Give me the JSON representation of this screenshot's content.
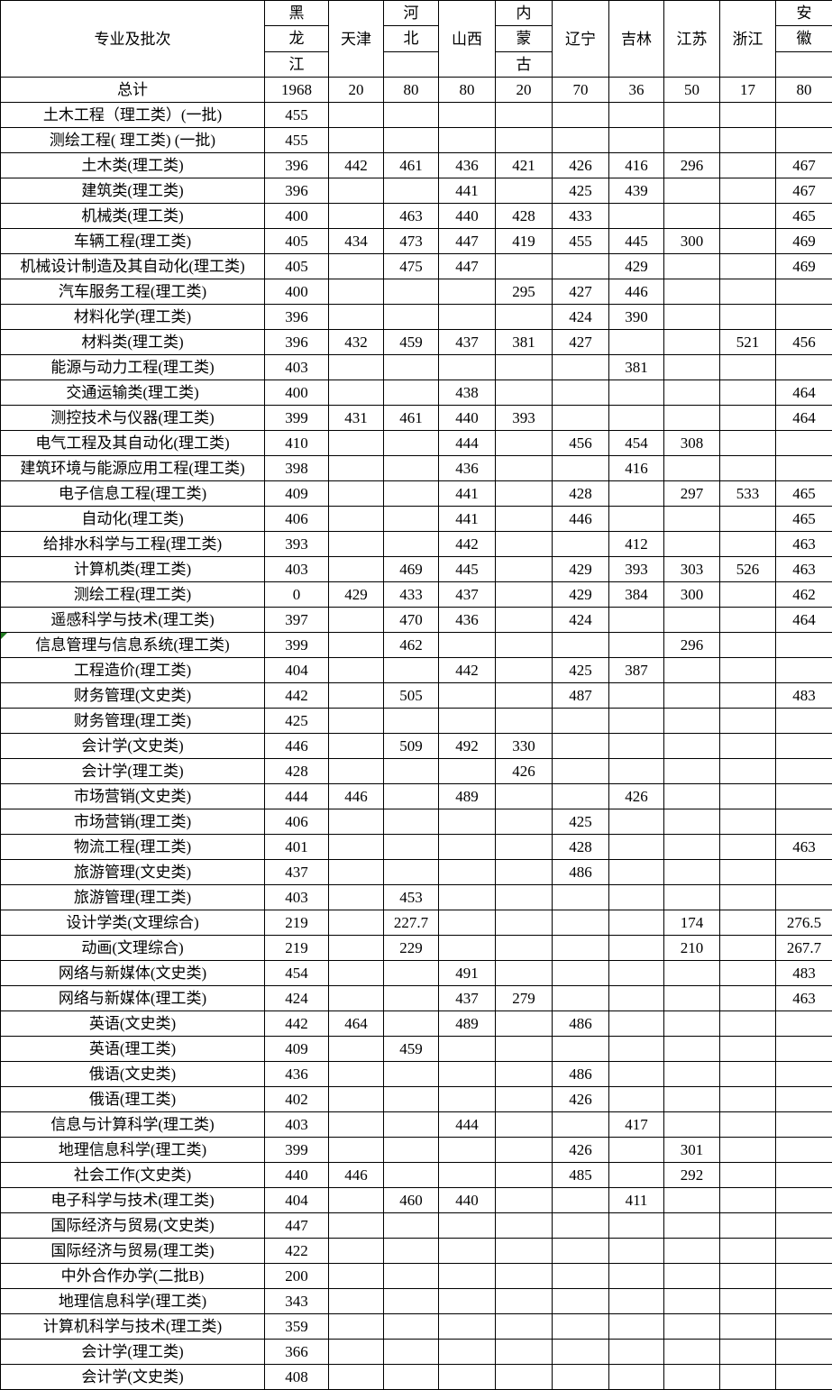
{
  "colors": {
    "background": "#ffffff",
    "border": "#000000",
    "text": "#000000",
    "marker_green": "#1f7a1f"
  },
  "table": {
    "label_header": "专业及批次",
    "provinces": [
      {
        "name": "黑龙江",
        "stack": [
          "黑",
          "龙",
          "江"
        ]
      },
      {
        "name": "天津",
        "stack": null
      },
      {
        "name": "河北",
        "stack": [
          "河",
          "北",
          ""
        ]
      },
      {
        "name": "山西",
        "stack": null
      },
      {
        "name": "内蒙古",
        "stack": [
          "内",
          "蒙",
          "古"
        ]
      },
      {
        "name": "辽宁",
        "stack": null
      },
      {
        "name": "吉林",
        "stack": null
      },
      {
        "name": "江苏",
        "stack": null
      },
      {
        "name": "浙江",
        "stack": null
      },
      {
        "name": "安徽",
        "stack": [
          "安",
          "徽",
          ""
        ]
      }
    ],
    "rows": [
      {
        "label": "总计",
        "values": [
          "1968",
          "20",
          "80",
          "80",
          "20",
          "70",
          "36",
          "50",
          "17",
          "80"
        ]
      },
      {
        "label": "土木工程（理工类）(一批)",
        "values": [
          "455",
          "",
          "",
          "",
          "",
          "",
          "",
          "",
          "",
          ""
        ]
      },
      {
        "label": "测绘工程( 理工类) (一批)",
        "values": [
          "455",
          "",
          "",
          "",
          "",
          "",
          "",
          "",
          "",
          ""
        ]
      },
      {
        "label": "土木类(理工类)",
        "values": [
          "396",
          "442",
          "461",
          "436",
          "421",
          "426",
          "416",
          "296",
          "",
          "467"
        ]
      },
      {
        "label": "建筑类(理工类)",
        "values": [
          "396",
          "",
          "",
          "441",
          "",
          "425",
          "439",
          "",
          "",
          "467"
        ]
      },
      {
        "label": "机械类(理工类)",
        "values": [
          "400",
          "",
          "463",
          "440",
          "428",
          "433",
          "",
          "",
          "",
          "465"
        ]
      },
      {
        "label": "车辆工程(理工类)",
        "values": [
          "405",
          "434",
          "473",
          "447",
          "419",
          "455",
          "445",
          "300",
          "",
          "469"
        ]
      },
      {
        "label": "机械设计制造及其自动化(理工类)",
        "values": [
          "405",
          "",
          "475",
          "447",
          "",
          "",
          "429",
          "",
          "",
          "469"
        ]
      },
      {
        "label": "汽车服务工程(理工类)",
        "values": [
          "400",
          "",
          "",
          "",
          "295",
          "427",
          "446",
          "",
          "",
          ""
        ]
      },
      {
        "label": "材料化学(理工类)",
        "values": [
          "396",
          "",
          "",
          "",
          "",
          "424",
          "390",
          "",
          "",
          ""
        ]
      },
      {
        "label": "材料类(理工类)",
        "values": [
          "396",
          "432",
          "459",
          "437",
          "381",
          "427",
          "",
          "",
          "521",
          "456"
        ]
      },
      {
        "label": "能源与动力工程(理工类)",
        "values": [
          "403",
          "",
          "",
          "",
          "",
          "",
          "381",
          "",
          "",
          ""
        ]
      },
      {
        "label": "交通运输类(理工类)",
        "values": [
          "400",
          "",
          "",
          "438",
          "",
          "",
          "",
          "",
          "",
          "464"
        ]
      },
      {
        "label": "测控技术与仪器(理工类)",
        "values": [
          "399",
          "431",
          "461",
          "440",
          "393",
          "",
          "",
          "",
          "",
          "464"
        ]
      },
      {
        "label": "电气工程及其自动化(理工类)",
        "values": [
          "410",
          "",
          "",
          "444",
          "",
          "456",
          "454",
          "308",
          "",
          ""
        ]
      },
      {
        "label": "建筑环境与能源应用工程(理工类)",
        "values": [
          "398",
          "",
          "",
          "436",
          "",
          "",
          "416",
          "",
          "",
          ""
        ]
      },
      {
        "label": "电子信息工程(理工类)",
        "values": [
          "409",
          "",
          "",
          "441",
          "",
          "428",
          "",
          "297",
          "533",
          "465"
        ]
      },
      {
        "label": "自动化(理工类)",
        "values": [
          "406",
          "",
          "",
          "441",
          "",
          "446",
          "",
          "",
          "",
          "465"
        ]
      },
      {
        "label": "给排水科学与工程(理工类)",
        "values": [
          "393",
          "",
          "",
          "442",
          "",
          "",
          "412",
          "",
          "",
          "463"
        ]
      },
      {
        "label": "计算机类(理工类)",
        "values": [
          "403",
          "",
          "469",
          "445",
          "",
          "429",
          "393",
          "303",
          "526",
          "463"
        ]
      },
      {
        "label": "测绘工程(理工类)",
        "values": [
          "0",
          "429",
          "433",
          "437",
          "",
          "429",
          "384",
          "300",
          "",
          "462"
        ]
      },
      {
        "label": "遥感科学与技术(理工类)",
        "values": [
          "397",
          "",
          "470",
          "436",
          "",
          "424",
          "",
          "",
          "",
          "464"
        ]
      },
      {
        "label": "信息管理与信息系统(理工类)",
        "marker": "green-triangle",
        "values": [
          "399",
          "",
          "462",
          "",
          "",
          "",
          "",
          "296",
          "",
          ""
        ]
      },
      {
        "label": "工程造价(理工类)",
        "values": [
          "404",
          "",
          "",
          "442",
          "",
          "425",
          "387",
          "",
          "",
          ""
        ]
      },
      {
        "label": "财务管理(文史类)",
        "values": [
          "442",
          "",
          "505",
          "",
          "",
          "487",
          "",
          "",
          "",
          "483"
        ]
      },
      {
        "label": "财务管理(理工类)",
        "values": [
          "425",
          "",
          "",
          "",
          "",
          "",
          "",
          "",
          "",
          ""
        ]
      },
      {
        "label": "会计学(文史类)",
        "values": [
          "446",
          "",
          "509",
          "492",
          "330",
          "",
          "",
          "",
          "",
          ""
        ]
      },
      {
        "label": "会计学(理工类)",
        "values": [
          "428",
          "",
          "",
          "",
          "426",
          "",
          "",
          "",
          "",
          ""
        ]
      },
      {
        "label": "市场营销(文史类)",
        "values": [
          "444",
          "446",
          "",
          "489",
          "",
          "",
          "426",
          "",
          "",
          ""
        ]
      },
      {
        "label": "市场营销(理工类)",
        "values": [
          "406",
          "",
          "",
          "",
          "",
          "425",
          "",
          "",
          "",
          ""
        ]
      },
      {
        "label": "物流工程(理工类)",
        "values": [
          "401",
          "",
          "",
          "",
          "",
          "428",
          "",
          "",
          "",
          "463"
        ]
      },
      {
        "label": "旅游管理(文史类)",
        "values": [
          "437",
          "",
          "",
          "",
          "",
          "486",
          "",
          "",
          "",
          ""
        ]
      },
      {
        "label": "旅游管理(理工类)",
        "values": [
          "403",
          "",
          "453",
          "",
          "",
          "",
          "",
          "",
          "",
          ""
        ]
      },
      {
        "label": "设计学类(文理综合)",
        "values": [
          "219",
          "",
          "227.7",
          "",
          "",
          "",
          "",
          "174",
          "",
          "276.5"
        ]
      },
      {
        "label": "动画(文理综合)",
        "values": [
          "219",
          "",
          "229",
          "",
          "",
          "",
          "",
          "210",
          "",
          "267.7"
        ]
      },
      {
        "label": "网络与新媒体(文史类)",
        "values": [
          "454",
          "",
          "",
          "491",
          "",
          "",
          "",
          "",
          "",
          "483"
        ]
      },
      {
        "label": "网络与新媒体(理工类)",
        "values": [
          "424",
          "",
          "",
          "437",
          "279",
          "",
          "",
          "",
          "",
          "463"
        ]
      },
      {
        "label": "英语(文史类)",
        "values": [
          "442",
          "464",
          "",
          "489",
          "",
          "486",
          "",
          "",
          "",
          ""
        ]
      },
      {
        "label": "英语(理工类)",
        "values": [
          "409",
          "",
          "459",
          "",
          "",
          "",
          "",
          "",
          "",
          ""
        ]
      },
      {
        "label": "俄语(文史类)",
        "values": [
          "436",
          "",
          "",
          "",
          "",
          "486",
          "",
          "",
          "",
          ""
        ]
      },
      {
        "label": "俄语(理工类)",
        "values": [
          "402",
          "",
          "",
          "",
          "",
          "426",
          "",
          "",
          "",
          ""
        ]
      },
      {
        "label": "信息与计算科学(理工类)",
        "values": [
          "403",
          "",
          "",
          "444",
          "",
          "",
          "417",
          "",
          "",
          ""
        ]
      },
      {
        "label": "地理信息科学(理工类)",
        "values": [
          "399",
          "",
          "",
          "",
          "",
          "426",
          "",
          "301",
          "",
          ""
        ]
      },
      {
        "label": "社会工作(文史类)",
        "values": [
          "440",
          "446",
          "",
          "",
          "",
          "485",
          "",
          "292",
          "",
          ""
        ]
      },
      {
        "label": "电子科学与技术(理工类)",
        "values": [
          "404",
          "",
          "460",
          "440",
          "",
          "",
          "411",
          "",
          "",
          ""
        ]
      },
      {
        "label": "国际经济与贸易(文史类)",
        "values": [
          "447",
          "",
          "",
          "",
          "",
          "",
          "",
          "",
          "",
          ""
        ]
      },
      {
        "label": "国际经济与贸易(理工类)",
        "values": [
          "422",
          "",
          "",
          "",
          "",
          "",
          "",
          "",
          "",
          ""
        ]
      },
      {
        "label": "中外合作办学(二批B)",
        "values": [
          "200",
          "",
          "",
          "",
          "",
          "",
          "",
          "",
          "",
          ""
        ]
      },
      {
        "label": "地理信息科学(理工类)",
        "values": [
          "343",
          "",
          "",
          "",
          "",
          "",
          "",
          "",
          "",
          ""
        ]
      },
      {
        "label": "计算机科学与技术(理工类)",
        "values": [
          "359",
          "",
          "",
          "",
          "",
          "",
          "",
          "",
          "",
          ""
        ]
      },
      {
        "label": "会计学(理工类)",
        "values": [
          "366",
          "",
          "",
          "",
          "",
          "",
          "",
          "",
          "",
          ""
        ]
      },
      {
        "label": "会计学(文史类)",
        "values": [
          "408",
          "",
          "",
          "",
          "",
          "",
          "",
          "",
          "",
          ""
        ]
      }
    ]
  }
}
